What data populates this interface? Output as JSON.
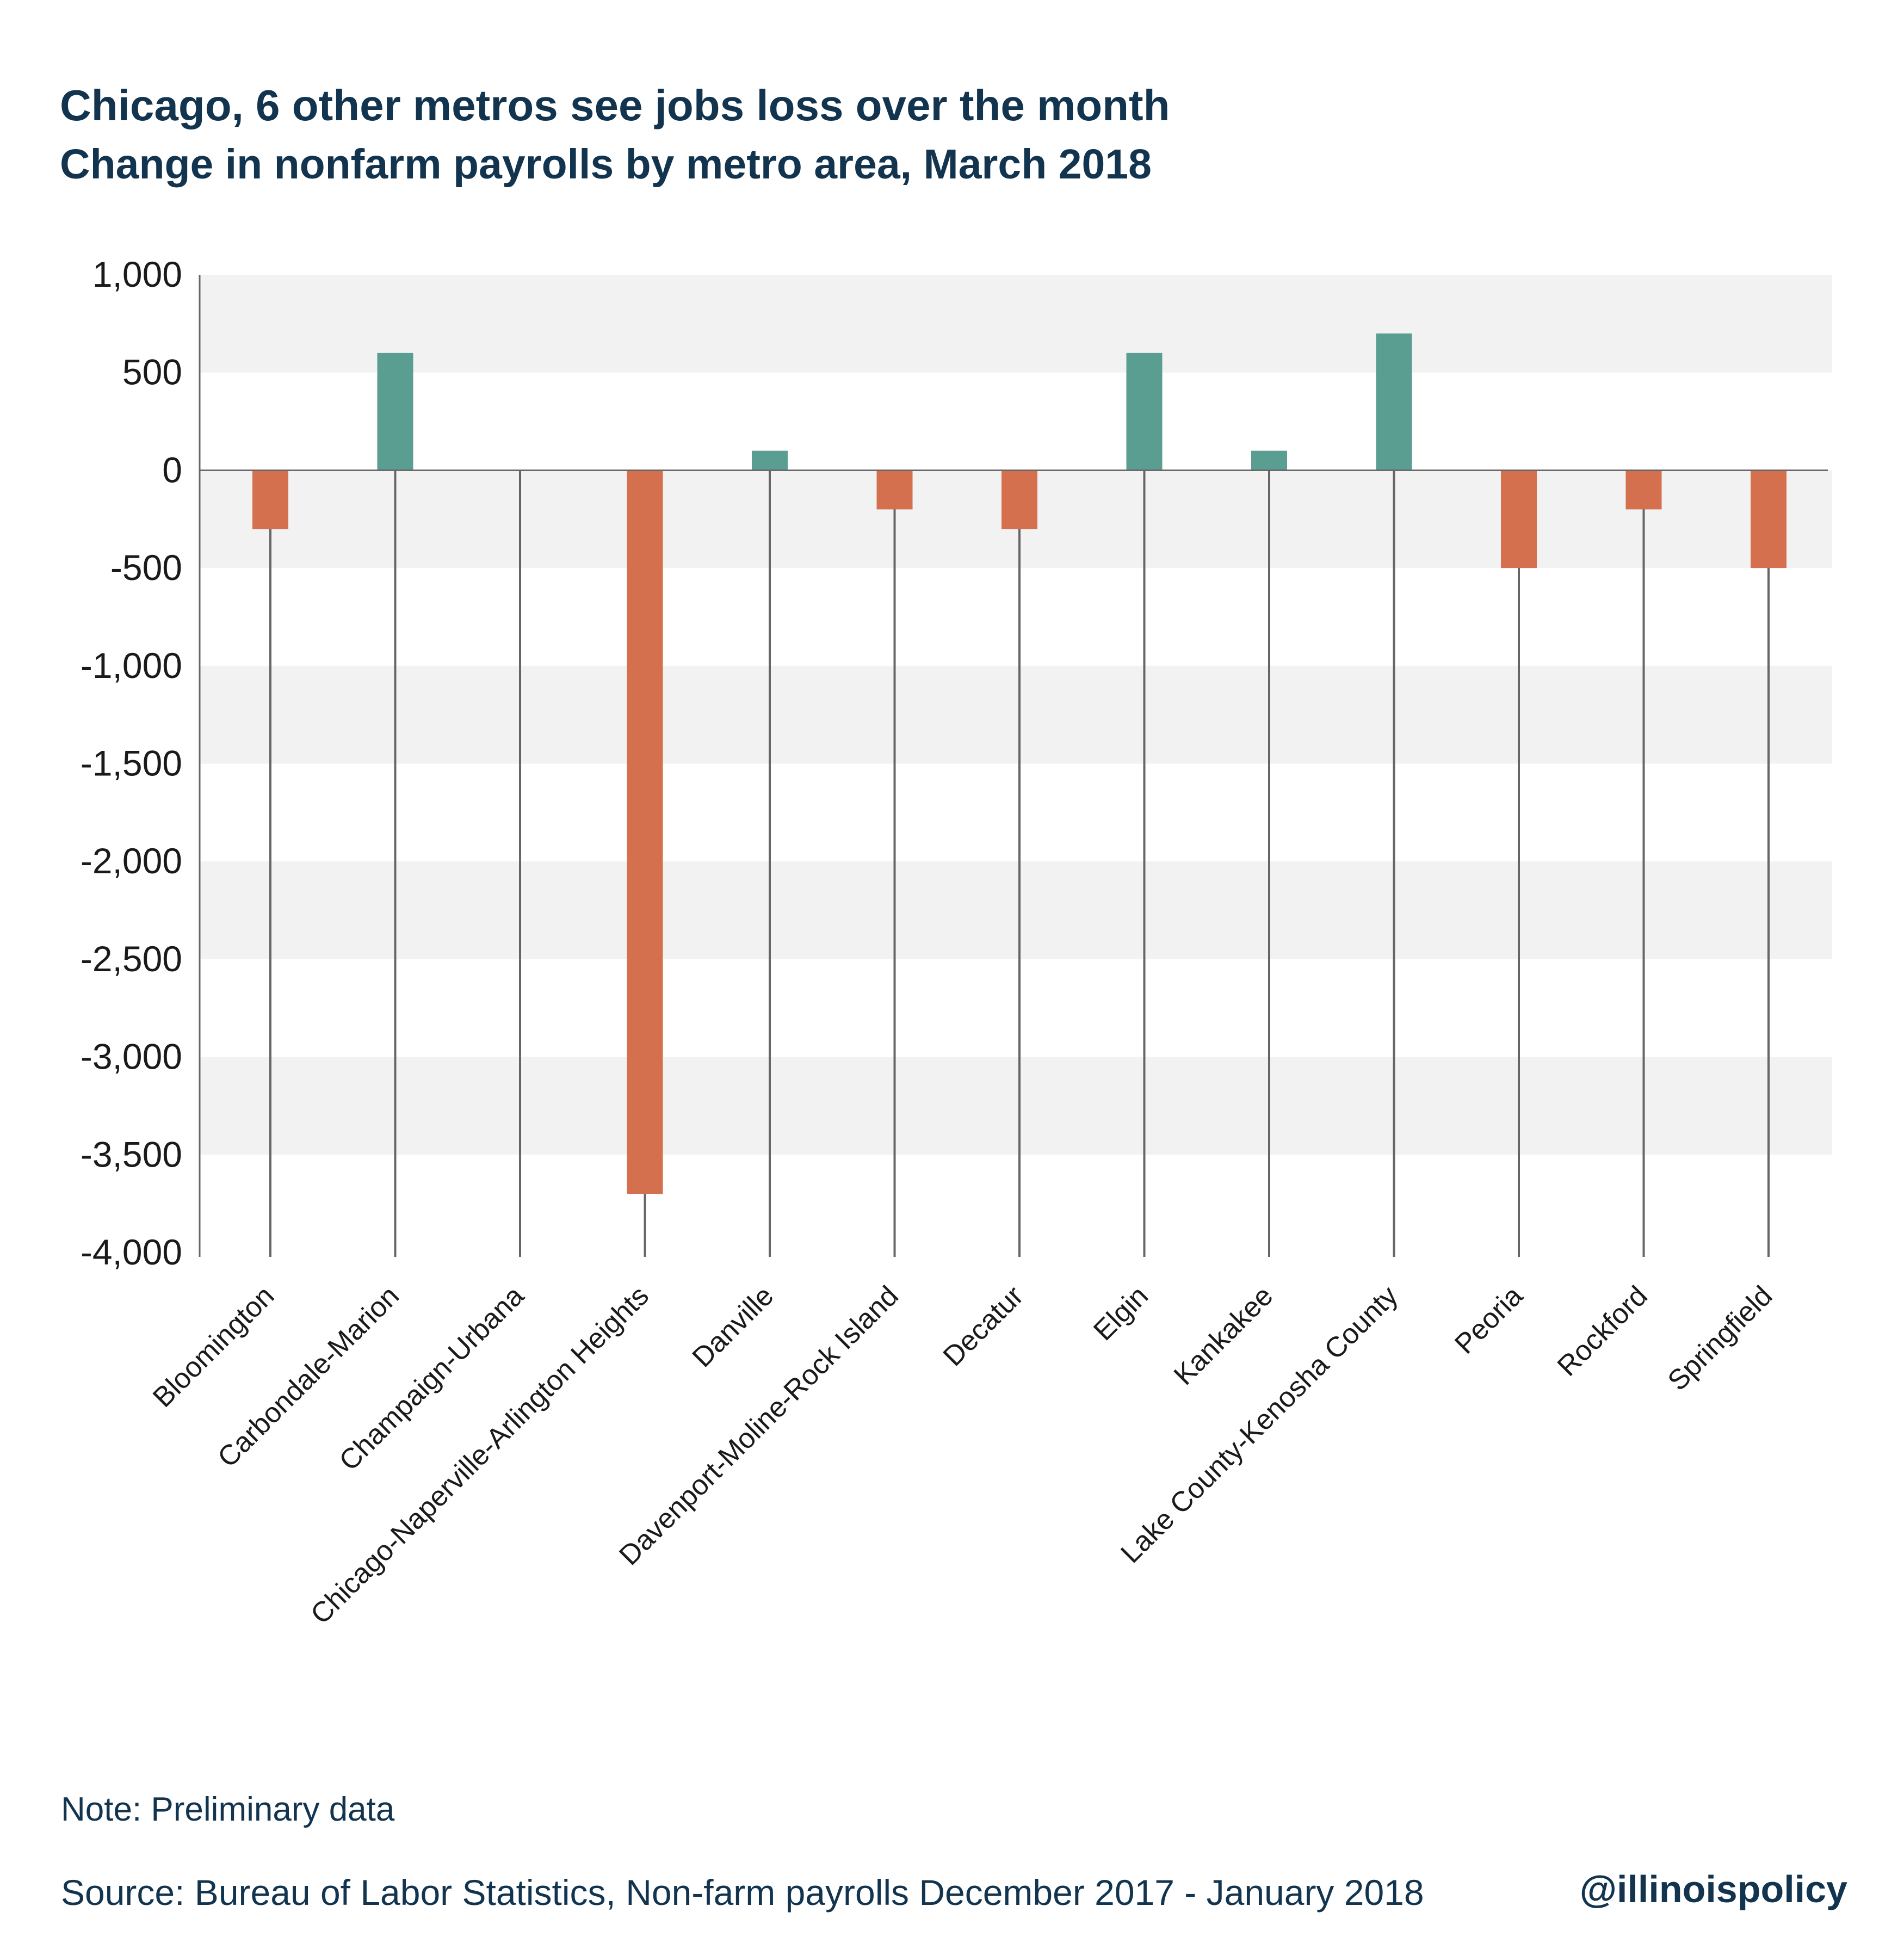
{
  "title": "Chicago, 6 other metros see jobs loss over the month",
  "subtitle": "Change in nonfarm payrolls by metro area, March 2018",
  "note": "Note: Preliminary data",
  "source": "Source: Bureau of Labor Statistics, Non-farm payrolls  December 2017 - January 2018",
  "brand": "@illinoispolicy",
  "colors": {
    "positive": "#5a9e92",
    "negative": "#d4704e",
    "band": "#f2f2f2",
    "text": "#12344f",
    "axis": "#666666"
  },
  "chart_data": {
    "type": "bar",
    "title": "Chicago, 6 other metros see jobs loss over the month",
    "subtitle": "Change in nonfarm payrolls by metro area, March 2018",
    "xlabel": "",
    "ylabel": "",
    "ylim": [
      -4000,
      1000
    ],
    "yticks": [
      1000,
      500,
      0,
      -500,
      -1000,
      -1500,
      -2000,
      -2500,
      -3000,
      -3500,
      -4000
    ],
    "ytick_labels": [
      "1,000",
      "500",
      "0",
      "-500",
      "-1,000",
      "-1,500",
      "-2,000",
      "-2,500",
      "-3,000",
      "-3,500",
      "-4,000"
    ],
    "grid": "alternating horizontal bands",
    "legend": "none",
    "categories": [
      "Bloomington",
      "Carbondale-Marion",
      "Champaign-Urbana",
      "Chicago-Naperville-Arlington Heights",
      "Danville",
      "Davenport-Moline-Rock Island",
      "Decatur",
      "Elgin",
      "Kankakee",
      "Lake County-Kenosha County",
      "Peoria",
      "Rockford",
      "Springfield"
    ],
    "values": [
      -300,
      600,
      0,
      -3700,
      100,
      -200,
      -300,
      600,
      100,
      700,
      -500,
      -200,
      -500
    ]
  }
}
